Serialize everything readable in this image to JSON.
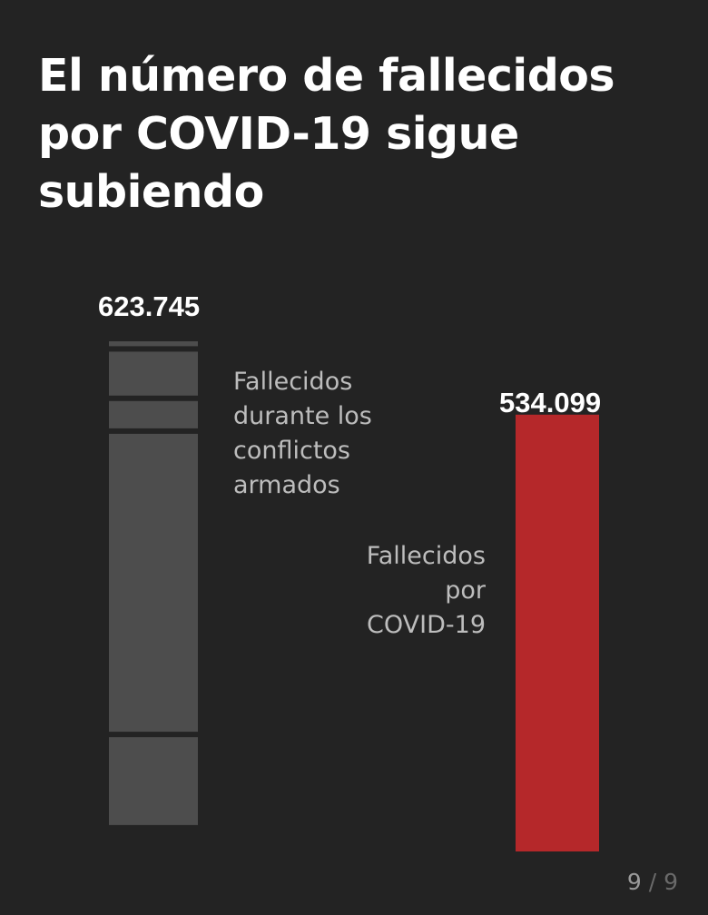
{
  "title": "El número de fallecidos por COVID-19 sigue subiendo",
  "colors": {
    "background": "#232323",
    "conflicts_bar": "#4d4d4d",
    "covid_bar": "#b5282a",
    "label_text": "#bdbdbd"
  },
  "chart_data": {
    "type": "bar",
    "categories": [
      "Fallecidos durante los conflictos armados",
      "Fallecidos por COVID-19"
    ],
    "values": [
      623745,
      534099
    ],
    "value_labels": [
      "623.745",
      "534.099"
    ],
    "segmented_first_bar": true,
    "grid": false
  },
  "labels": {
    "conflicts": [
      "Fallecidos",
      "durante los",
      "conflictos",
      "armados"
    ],
    "covid": [
      "Fallecidos",
      "por",
      "COVID-19"
    ]
  },
  "pager": {
    "current": "9",
    "separator": "/",
    "total": "9"
  }
}
